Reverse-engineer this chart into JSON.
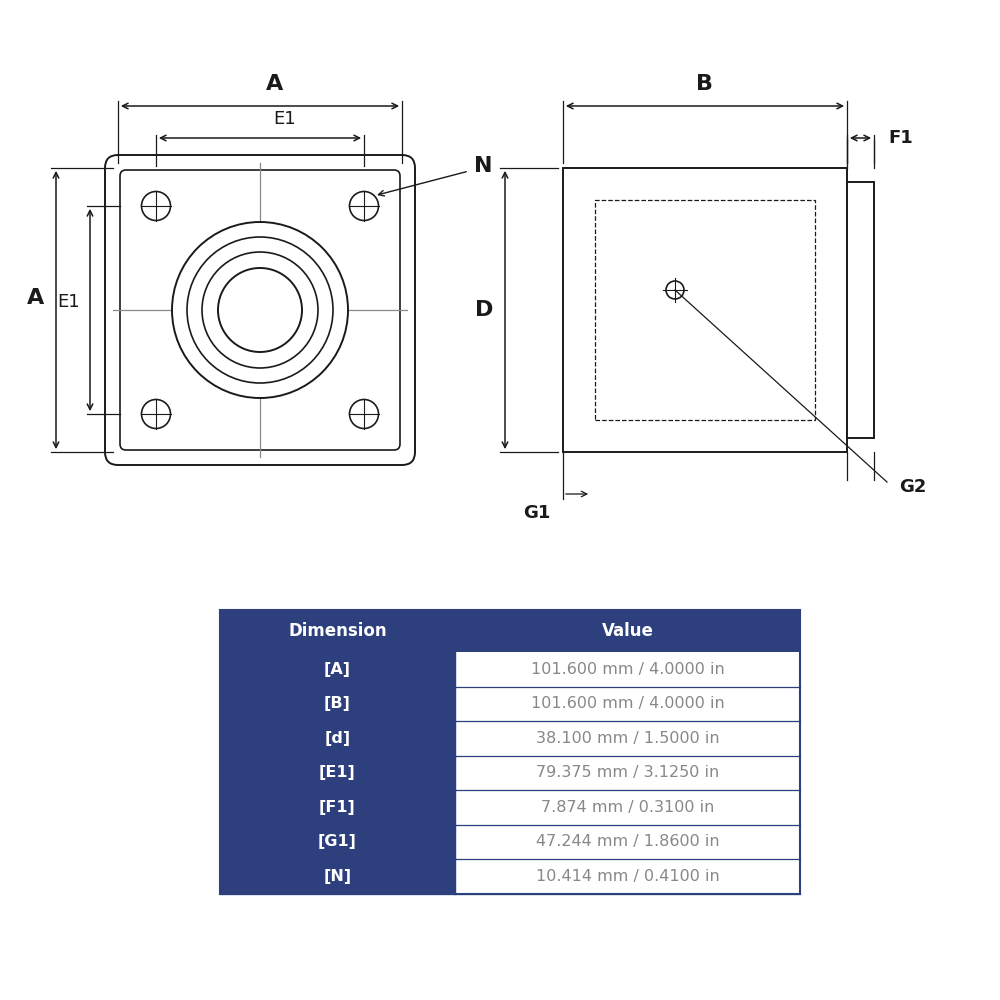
{
  "bg_color": "#ffffff",
  "line_color": "#1a1a1a",
  "crosshair_color": "#888888",
  "table_header_color": "#2d3f7c",
  "table_header_text": "#ffffff",
  "table_dim_col_color": "#2d3f7c",
  "table_dim_text": "#ffffff",
  "table_val_text": "#888888",
  "table_border_color": "#2d3f7c",
  "table_data": [
    {
      "dim": "[A]",
      "val": "101.600 mm / 4.0000 in"
    },
    {
      "dim": "[B]",
      "val": "101.600 mm / 4.0000 in"
    },
    {
      "dim": "[d]",
      "val": "38.100 mm / 1.5000 in"
    },
    {
      "dim": "[E1]",
      "val": "79.375 mm / 3.1250 in"
    },
    {
      "dim": "[F1]",
      "val": "7.874 mm / 0.3100 in"
    },
    {
      "dim": "[G1]",
      "val": "47.244 mm / 1.8600 in"
    },
    {
      "dim": "[N]",
      "val": "10.414 mm / 0.4100 in"
    }
  ],
  "label_fontsize": 14,
  "bold_label_fontsize": 16,
  "annotation_color": "#1a1a1a"
}
